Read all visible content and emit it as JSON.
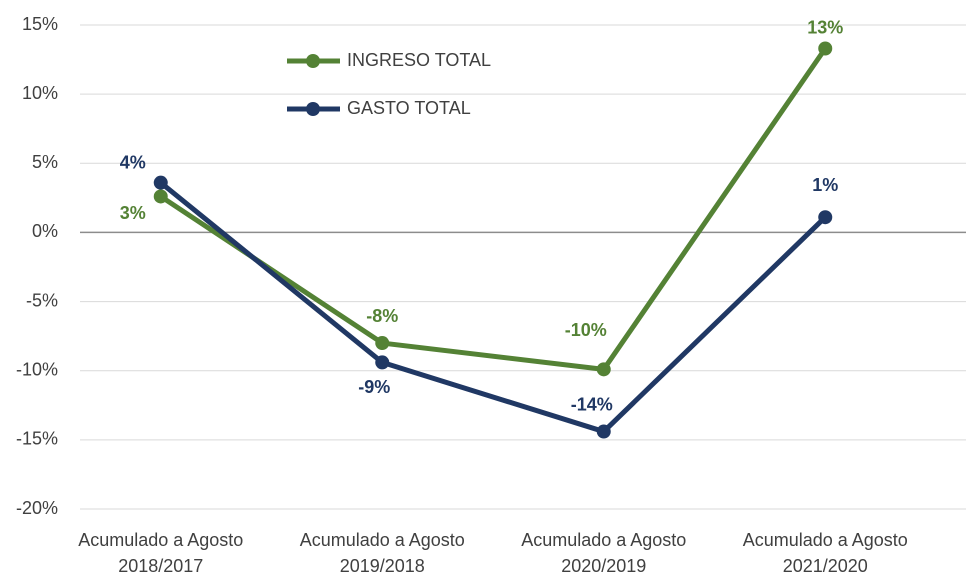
{
  "chart_data": {
    "type": "line",
    "categories": [
      [
        "Acumulado a Agosto",
        "2018/2017"
      ],
      [
        "Acumulado a Agosto",
        "2019/2018"
      ],
      [
        "Acumulado a Agosto",
        "2020/2019"
      ],
      [
        "Acumulado a Agosto",
        "2021/2020"
      ]
    ],
    "series": [
      {
        "name": "INGRESO TOTAL",
        "color": "#548235",
        "values": [
          2.6,
          -8,
          -9.9,
          13.3
        ],
        "value_labels": [
          "3%",
          "-8%",
          "-10%",
          "13%"
        ]
      },
      {
        "name": "GASTO TOTAL",
        "color": "#203864",
        "values": [
          3.6,
          -9.4,
          -14.4,
          1.1
        ],
        "value_labels": [
          "4%",
          "-9%",
          "-14%",
          "1%"
        ]
      }
    ],
    "ylim": [
      -20,
      15
    ],
    "yticks": [
      {
        "value": -20,
        "label": "-20%"
      },
      {
        "value": -15,
        "label": "-15%"
      },
      {
        "value": -10,
        "label": "-10%"
      },
      {
        "value": -5,
        "label": "-5%"
      },
      {
        "value": 0,
        "label": "0%"
      },
      {
        "value": 5,
        "label": "5%"
      },
      {
        "value": 10,
        "label": "10%"
      },
      {
        "value": 15,
        "label": "15%"
      }
    ],
    "grid": true
  }
}
